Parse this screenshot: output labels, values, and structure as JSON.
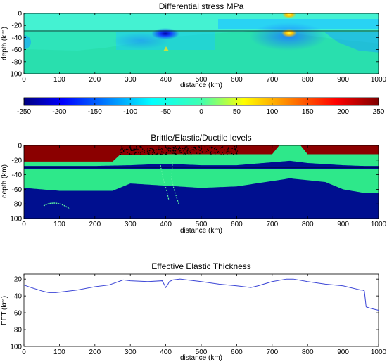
{
  "panels": {
    "stress": {
      "title": "Differential stress MPa",
      "xlabel": "distance (km)",
      "ylabel": "depth (km)",
      "xticks": [
        "0",
        "100",
        "200",
        "300",
        "400",
        "500",
        "600",
        "700",
        "800",
        "900",
        "1000"
      ],
      "yticks": [
        "0",
        "-20",
        "-40",
        "-60",
        "-80",
        "-100"
      ]
    },
    "colorbar": {
      "ticks": [
        "-250",
        "-200",
        "-150",
        "-100",
        "-50",
        "0",
        "50",
        "100",
        "150",
        "200",
        "250"
      ]
    },
    "bed": {
      "title": "Brittle/Elastic/Ductile levels",
      "xlabel": "distance (km)",
      "ylabel": "depth (km)",
      "xticks": [
        "0",
        "100",
        "200",
        "300",
        "400",
        "500",
        "600",
        "700",
        "800",
        "900",
        "1000"
      ],
      "yticks": [
        "0",
        "-20",
        "-40",
        "-60",
        "-80",
        "-100"
      ]
    },
    "eet": {
      "title": "Effective Elastic Thickness",
      "xlabel": "distance (km)",
      "ylabel": "EET (km)",
      "xticks": [
        "0",
        "100",
        "200",
        "300",
        "400",
        "500",
        "600",
        "700",
        "800",
        "900",
        "1000"
      ],
      "yticks": [
        "20",
        "40",
        "60",
        "80",
        "100"
      ]
    }
  },
  "chart_data": [
    {
      "type": "heatmap",
      "title": "Differential stress MPa",
      "xlabel": "distance (km)",
      "ylabel": "depth (km)",
      "xlim": [
        0,
        1000
      ],
      "ylim": [
        -100,
        0
      ],
      "colorbar_range": [
        -250,
        250
      ],
      "colormap": "jet",
      "features": [
        {
          "x": 750,
          "depth": -2,
          "stress": 180
        },
        {
          "x": 750,
          "depth": -32,
          "stress": 150
        },
        {
          "x": 400,
          "depth": -33,
          "stress": -230
        },
        {
          "x": 400,
          "depth": -55,
          "stress": 100
        }
      ]
    },
    {
      "type": "heatmap",
      "title": "Brittle/Elastic/Ductile levels",
      "xlabel": "distance (km)",
      "ylabel": "depth (km)",
      "xlim": [
        0,
        1000
      ],
      "ylim": [
        -100,
        0
      ],
      "colors": {
        "brittle": "#8b0000",
        "elastic": "#2ee88a",
        "ductile": "#000f8f"
      },
      "upper_crust_brittle_base": {
        "x": [
          0,
          250,
          270,
          400,
          600,
          700,
          720,
          780,
          800,
          960,
          1000
        ],
        "depth": [
          -22,
          -22,
          -13,
          -12,
          -12,
          -12,
          0,
          0,
          -12,
          -12,
          -12
        ]
      },
      "upper_elastic_base": {
        "x": [
          0,
          100,
          200,
          300,
          400,
          500,
          600,
          750,
          800,
          900,
          960,
          1000
        ],
        "depth": [
          -28,
          -28,
          -28,
          -27,
          -25,
          -27,
          -27,
          -21,
          -24,
          -27,
          -28,
          -28
        ]
      },
      "lower_elastic_base": {
        "x": [
          0,
          100,
          250,
          300,
          400,
          500,
          600,
          750,
          850,
          900,
          960,
          1000
        ],
        "depth": [
          -58,
          -62,
          -62,
          -52,
          -55,
          -58,
          -56,
          -45,
          -50,
          -60,
          -65,
          -65
        ]
      }
    },
    {
      "type": "line",
      "title": "Effective Elastic Thickness",
      "xlabel": "distance (km)",
      "ylabel": "EET (km)",
      "xlim": [
        0,
        1000
      ],
      "ylim": [
        100,
        14
      ],
      "y_reversed": true,
      "line_color": "#3c46d6",
      "series": [
        {
          "x": [
            0,
            20,
            50,
            70,
            90,
            110,
            150,
            200,
            240,
            260,
            280,
            300,
            350,
            390,
            395,
            400,
            405,
            410,
            420,
            440,
            460,
            500,
            550,
            600,
            640,
            660,
            700,
            740,
            760,
            800,
            850,
            900,
            950,
            955,
            960,
            965,
            980,
            1000
          ],
          "y": [
            27,
            30,
            34,
            36,
            36,
            35,
            33,
            29,
            27,
            24,
            21,
            22,
            23,
            22,
            26,
            30,
            27,
            23,
            21,
            20,
            21,
            23,
            26,
            28,
            30,
            28,
            23,
            20,
            20,
            23,
            26,
            28,
            33,
            33,
            34,
            53,
            55,
            57
          ]
        }
      ]
    }
  ]
}
